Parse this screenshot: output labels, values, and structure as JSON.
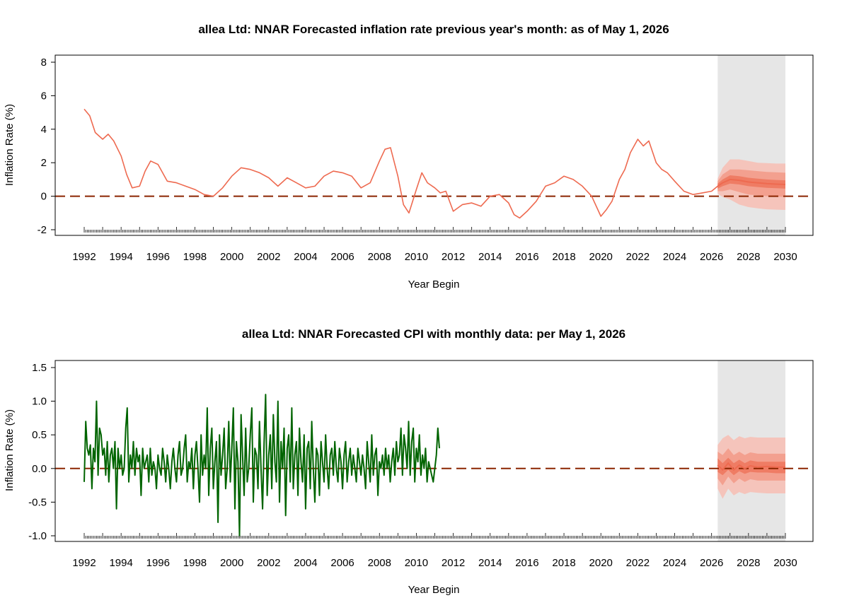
{
  "chart_data": [
    {
      "type": "line",
      "title": "allea Ltd: NNAR Forecasted inflation rate previous year's month: as of May 1, 2026",
      "xlabel": "Year Begin",
      "ylabel": "Inflation Rate (%)",
      "xlim": [
        1992,
        2030
      ],
      "ylim": [
        -2,
        8
      ],
      "x_ticks": [
        "1992",
        "1994",
        "1996",
        "1998",
        "2000",
        "2002",
        "2004",
        "2006",
        "2008",
        "2010",
        "2012",
        "2014",
        "2016",
        "2018",
        "2020",
        "2022",
        "2024",
        "2026",
        "2028",
        "2030"
      ],
      "y_ticks": [
        "-2",
        "0",
        "2",
        "4",
        "6",
        "8"
      ],
      "reference_line": 0,
      "forecast_region": [
        2026.33,
        2030
      ],
      "series": [
        {
          "color": "#EE6A50",
          "x": [
            1992.0,
            1992.3,
            1992.6,
            1993.0,
            1993.3,
            1993.6,
            1994.0,
            1994.3,
            1994.6,
            1995.0,
            1995.3,
            1995.6,
            1996.0,
            1996.5,
            1997.0,
            1997.5,
            1998.0,
            1998.5,
            1999.0,
            1999.5,
            2000.0,
            2000.5,
            2001.0,
            2001.5,
            2002.0,
            2002.5,
            2003.0,
            2003.5,
            2004.0,
            2004.5,
            2005.0,
            2005.5,
            2006.0,
            2006.5,
            2007.0,
            2007.5,
            2008.0,
            2008.3,
            2008.6,
            2009.0,
            2009.3,
            2009.6,
            2010.0,
            2010.3,
            2010.6,
            2011.0,
            2011.3,
            2011.6,
            2012.0,
            2012.5,
            2013.0,
            2013.5,
            2014.0,
            2014.5,
            2015.0,
            2015.3,
            2015.6,
            2016.0,
            2016.5,
            2017.0,
            2017.5,
            2018.0,
            2018.5,
            2019.0,
            2019.5,
            2020.0,
            2020.3,
            2020.6,
            2021.0,
            2021.3,
            2021.6,
            2022.0,
            2022.3,
            2022.6,
            2023.0,
            2023.3,
            2023.6,
            2024.0,
            2024.5,
            2025.0,
            2025.5,
            2026.0,
            2026.33
          ],
          "y": [
            5.2,
            4.8,
            3.8,
            3.4,
            3.7,
            3.3,
            2.4,
            1.3,
            0.5,
            0.6,
            1.5,
            2.1,
            1.9,
            0.9,
            0.8,
            0.6,
            0.4,
            0.1,
            0.0,
            0.5,
            1.2,
            1.7,
            1.6,
            1.4,
            1.1,
            0.6,
            1.1,
            0.8,
            0.5,
            0.6,
            1.2,
            1.5,
            1.4,
            1.2,
            0.5,
            0.8,
            2.1,
            2.8,
            2.9,
            1.2,
            -0.5,
            -1.0,
            0.4,
            1.4,
            0.8,
            0.5,
            0.2,
            0.3,
            -0.9,
            -0.5,
            -0.4,
            -0.6,
            0.0,
            0.1,
            -0.4,
            -1.1,
            -1.3,
            -0.9,
            -0.3,
            0.6,
            0.8,
            1.2,
            1.0,
            0.6,
            0.0,
            -1.2,
            -0.8,
            -0.3,
            1.0,
            1.6,
            2.6,
            3.4,
            3.0,
            3.3,
            2.0,
            1.6,
            1.4,
            0.9,
            0.3,
            0.1,
            0.2,
            0.3,
            0.6
          ]
        }
      ],
      "forecast": {
        "color": "#EE6A50",
        "x": [
          2026.33,
          2026.6,
          2027.0,
          2027.5,
          2028.0,
          2028.5,
          2029.0,
          2029.5,
          2030.0
        ],
        "mean": [
          0.6,
          0.8,
          1.0,
          0.95,
          0.85,
          0.8,
          0.75,
          0.72,
          0.7
        ],
        "inner": [
          [
            0.45,
            0.75
          ],
          [
            0.6,
            1.0
          ],
          [
            0.75,
            1.25
          ],
          [
            0.7,
            1.2
          ],
          [
            0.6,
            1.1
          ],
          [
            0.55,
            1.05
          ],
          [
            0.5,
            1.0
          ],
          [
            0.48,
            0.97
          ],
          [
            0.45,
            0.95
          ]
        ],
        "middle": [
          [
            0.3,
            0.9
          ],
          [
            0.3,
            1.3
          ],
          [
            0.4,
            1.6
          ],
          [
            0.25,
            1.6
          ],
          [
            0.1,
            1.55
          ],
          [
            0.05,
            1.5
          ],
          [
            0.0,
            1.45
          ],
          [
            -0.02,
            1.43
          ],
          [
            -0.05,
            1.4
          ]
        ],
        "outer": [
          [
            0.15,
            1.05
          ],
          [
            -0.05,
            1.7
          ],
          [
            -0.2,
            2.2
          ],
          [
            -0.5,
            2.2
          ],
          [
            -0.65,
            2.1
          ],
          [
            -0.72,
            2.0
          ],
          [
            -0.78,
            1.98
          ],
          [
            -0.8,
            1.95
          ],
          [
            -0.82,
            1.95
          ]
        ]
      }
    },
    {
      "type": "line",
      "title": "allea Ltd: NNAR Forecasted CPI with monthly data: per May 1, 2026",
      "xlabel": "Year Begin",
      "ylabel": "Inflation Rate (%)",
      "xlim": [
        1992,
        2030
      ],
      "ylim": [
        -1.0,
        1.5
      ],
      "x_ticks": [
        "1992",
        "1994",
        "1996",
        "1998",
        "2000",
        "2002",
        "2004",
        "2006",
        "2008",
        "2010",
        "2012",
        "2014",
        "2016",
        "2018",
        "2020",
        "2022",
        "2024",
        "2026",
        "2028",
        "2030"
      ],
      "y_ticks": [
        "-1.0",
        "-0.5",
        "0.0",
        "0.5",
        "1.0",
        "1.5"
      ],
      "reference_line": 0,
      "forecast_region": [
        2026.33,
        2030
      ],
      "series": [
        {
          "color": "#006400",
          "x_start": 1992.0,
          "x_step": 0.08333,
          "y": [
            -0.2,
            0.7,
            0.3,
            0.2,
            0.35,
            -0.3,
            0.3,
            0.1,
            1.0,
            -0.1,
            0.6,
            0.5,
            0.2,
            0.3,
            -0.1,
            0.4,
            -0.2,
            0.2,
            0.3,
            0.0,
            0.4,
            -0.6,
            0.3,
            0.0,
            0.2,
            -0.1,
            0.0,
            0.6,
            0.9,
            -0.2,
            0.2,
            0.0,
            0.4,
            -0.1,
            0.3,
            0.1,
            0.2,
            -0.4,
            0.3,
            0.0,
            0.1,
            0.2,
            -0.2,
            0.3,
            -0.1,
            0.1,
            0.0,
            -0.3,
            0.2,
            0.0,
            -0.1,
            0.3,
            0.1,
            -0.2,
            0.2,
            0.0,
            -0.3,
            0.1,
            0.3,
            0.0,
            -0.2,
            0.2,
            0.4,
            -0.1,
            0.0,
            0.3,
            0.5,
            -0.2,
            0.1,
            0.0,
            0.3,
            -0.3,
            0.2,
            0.4,
            0.0,
            -0.5,
            0.5,
            -0.1,
            0.2,
            0.0,
            0.9,
            -0.4,
            0.3,
            0.6,
            -0.3,
            0.1,
            0.4,
            -0.8,
            0.5,
            -0.1,
            0.2,
            0.6,
            -0.3,
            0.0,
            0.7,
            -0.2,
            0.3,
            0.9,
            -0.6,
            0.4,
            0.1,
            -1.0,
            0.8,
            0.2,
            -0.4,
            0.6,
            -0.2,
            0.0,
            0.5,
            0.9,
            -0.5,
            0.3,
            0.2,
            -0.3,
            0.7,
            0.0,
            -0.6,
            0.4,
            1.1,
            -0.4,
            0.2,
            0.5,
            -0.3,
            0.8,
            0.1,
            -0.2,
            1.0,
            -0.5,
            0.4,
            0.0,
            0.6,
            -0.7,
            0.3,
            0.5,
            -0.2,
            0.9,
            -0.3,
            0.2,
            0.4,
            -0.4,
            0.6,
            0.1,
            -0.2,
            0.5,
            -0.6,
            0.3,
            0.4,
            -0.3,
            0.7,
            0.0,
            -0.5,
            0.3,
            0.2,
            -0.4,
            0.4,
            0.1,
            -0.2,
            0.5,
            0.0,
            -0.3,
            0.2,
            0.3,
            -0.1,
            0.4,
            0.0,
            -0.2,
            0.3,
            0.1,
            -0.3,
            0.2,
            0.4,
            -0.2,
            0.1,
            0.3,
            -0.1,
            0.2,
            0.0,
            -0.2,
            0.3,
            0.1,
            -0.1,
            0.2,
            0.0,
            -0.3,
            0.4,
            0.1,
            -0.2,
            0.5,
            -0.1,
            0.2,
            0.3,
            -0.4,
            0.1,
            0.0,
            0.2,
            -0.1,
            0.3,
            0.0,
            0.2,
            -0.2,
            0.1,
            0.3,
            -0.1,
            0.4,
            0.1,
            0.2,
            0.6,
            -0.1,
            0.5,
            0.3,
            0.0,
            0.7,
            -0.1,
            0.4,
            0.6,
            -0.2,
            0.3,
            0.1,
            0.5,
            -0.1,
            0.2,
            0.0,
            0.3,
            -0.2,
            0.1,
            0.0,
            -0.1,
            -0.2,
            0.0,
            0.2,
            0.6,
            0.3
          ]
        }
      ],
      "forecast": {
        "color": "#EE6A50",
        "x": [
          2026.33,
          2026.6,
          2026.9,
          2027.2,
          2027.5,
          2027.8,
          2028.1,
          2028.5,
          2029.0,
          2029.5,
          2030.0
        ],
        "mean": [
          0.05,
          -0.02,
          0.08,
          -0.02,
          0.05,
          0.0,
          0.04,
          0.02,
          0.03,
          0.02,
          0.02
        ],
        "inner": [
          [
            -0.05,
            0.15
          ],
          [
            -0.1,
            0.08
          ],
          [
            -0.02,
            0.16
          ],
          [
            -0.1,
            0.08
          ],
          [
            -0.04,
            0.13
          ],
          [
            -0.08,
            0.08
          ],
          [
            -0.05,
            0.12
          ],
          [
            -0.06,
            0.1
          ],
          [
            -0.06,
            0.1
          ],
          [
            -0.07,
            0.1
          ],
          [
            -0.07,
            0.1
          ]
        ],
        "middle": [
          [
            -0.15,
            0.25
          ],
          [
            -0.25,
            0.2
          ],
          [
            -0.12,
            0.3
          ],
          [
            -0.22,
            0.2
          ],
          [
            -0.15,
            0.25
          ],
          [
            -0.2,
            0.2
          ],
          [
            -0.16,
            0.24
          ],
          [
            -0.18,
            0.22
          ],
          [
            -0.18,
            0.22
          ],
          [
            -0.18,
            0.22
          ],
          [
            -0.18,
            0.22
          ]
        ],
        "outer": [
          [
            -0.3,
            0.35
          ],
          [
            -0.45,
            0.45
          ],
          [
            -0.3,
            0.5
          ],
          [
            -0.4,
            0.42
          ],
          [
            -0.35,
            0.48
          ],
          [
            -0.38,
            0.45
          ],
          [
            -0.35,
            0.47
          ],
          [
            -0.36,
            0.46
          ],
          [
            -0.37,
            0.46
          ],
          [
            -0.37,
            0.46
          ],
          [
            -0.37,
            0.46
          ]
        ]
      }
    }
  ]
}
